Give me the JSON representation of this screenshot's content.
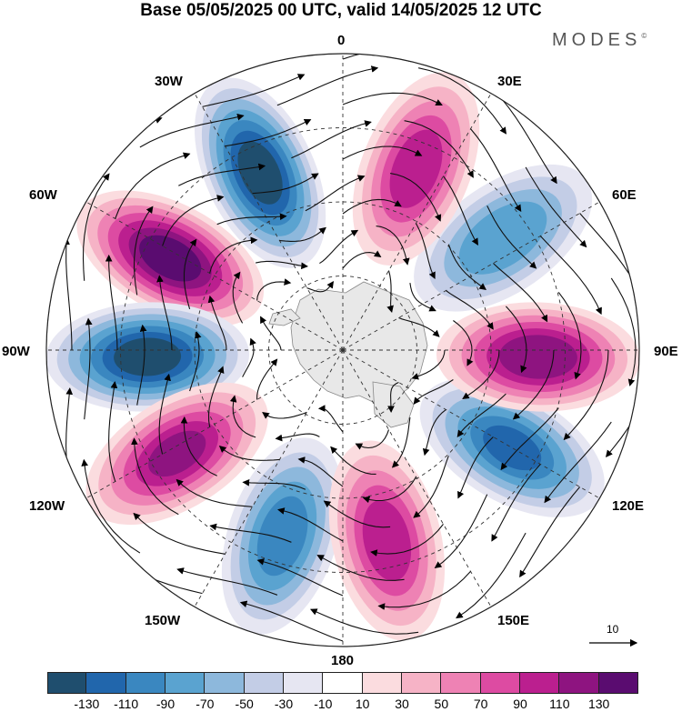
{
  "title": "Base 05/05/2025 00 UTC, valid 14/05/2025 12 UTC",
  "brand": "MODES",
  "brand_mark": "©",
  "longitude_labels": {
    "lon_0": "0",
    "lon_30e": "30E",
    "lon_60e": "60E",
    "lon_90e": "90E",
    "lon_120e": "120E",
    "lon_150e": "150E",
    "lon_180": "180",
    "lon_150w": "150W",
    "lon_120w": "120W",
    "lon_90w": "90W",
    "lon_60w": "60W",
    "lon_30w": "30W"
  },
  "reference_vector_label": "10",
  "colorbar": {
    "colors": [
      "#1f4e6e",
      "#2166ac",
      "#3a87c0",
      "#5aa3d0",
      "#8db8dc",
      "#c3cde6",
      "#e6e6f2",
      "#ffffff",
      "#fbdcdf",
      "#f6b3c6",
      "#ee82b4",
      "#dd4ba2",
      "#bb1f8f",
      "#8e1480",
      "#5a0c70"
    ],
    "tick_labels": [
      "-130",
      "-110",
      "-90",
      "-70",
      "-50",
      "-30",
      "-10",
      "10",
      "30",
      "50",
      "70",
      "90",
      "110",
      "130"
    ]
  },
  "anomaly_centers": [
    {
      "lon_deg": 335,
      "value": -140
    },
    {
      "lon_deg": 298,
      "value": 140
    },
    {
      "lon_deg": 268,
      "value": -140
    },
    {
      "lon_deg": 238,
      "value": 110
    },
    {
      "lon_deg": 198,
      "value": -100
    },
    {
      "lon_deg": 167,
      "value": 100
    },
    {
      "lon_deg": 120,
      "value": -110
    },
    {
      "lon_deg": 92,
      "value": 125
    },
    {
      "lon_deg": 55,
      "value": -85
    },
    {
      "lon_deg": 22,
      "value": 100
    }
  ]
}
